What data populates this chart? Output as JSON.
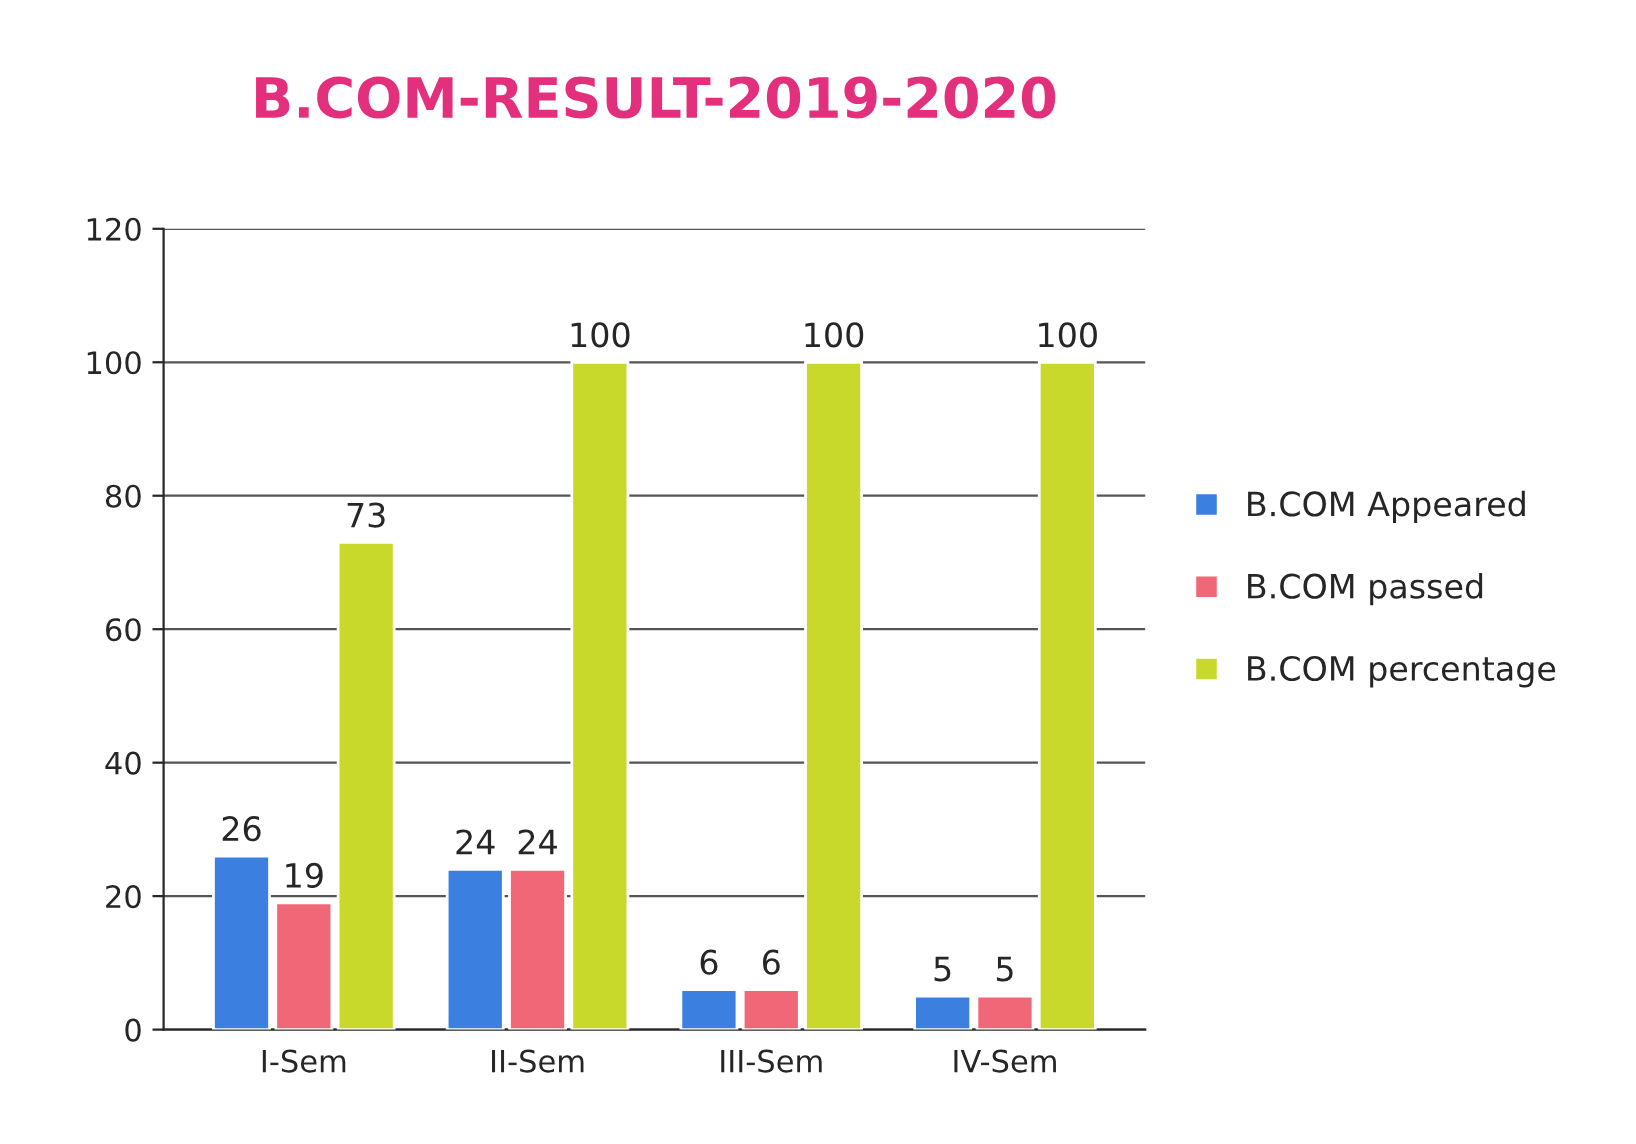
{
  "chart_data": {
    "type": "bar",
    "title": "B.COM-RESULT-2019-2020",
    "categories": [
      "I-Sem",
      "II-Sem",
      "III-Sem",
      "IV-Sem"
    ],
    "series": [
      {
        "name": "B.COM Appeared",
        "color": "#3b7fe0",
        "values": [
          26,
          24,
          6,
          5
        ]
      },
      {
        "name": "B.COM passed",
        "color": "#f06878",
        "values": [
          19,
          24,
          6,
          5
        ]
      },
      {
        "name": "B.COM percentage",
        "color": "#c9d92c",
        "values": [
          73,
          100,
          100,
          100
        ]
      }
    ],
    "ylim": [
      0,
      120
    ],
    "yticks": [
      0,
      20,
      40,
      60,
      80,
      100,
      120
    ],
    "grid": "y",
    "legend": "right",
    "data_labels": true
  }
}
